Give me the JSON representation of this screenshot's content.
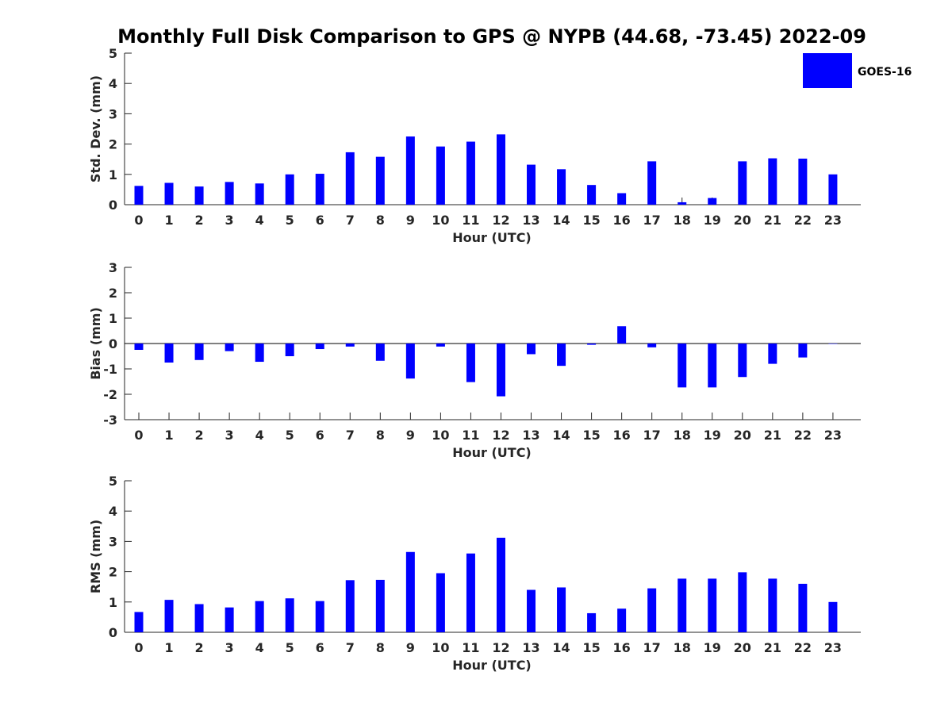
{
  "title": "Monthly Full Disk Comparison to GPS @ NYPB (44.68, -73.45) 2022-09",
  "legend": {
    "label": "GOES-16",
    "color": "#0000ff"
  },
  "bar_color": "#0000ff",
  "chart_data": [
    {
      "type": "bar",
      "xlabel": "Hour (UTC)",
      "ylabel": "Std. Dev. (mm)",
      "ylim": [
        0,
        5
      ],
      "yticks": [
        0,
        1,
        2,
        3,
        4,
        5
      ],
      "categories": [
        "0",
        "1",
        "2",
        "3",
        "4",
        "5",
        "6",
        "7",
        "8",
        "9",
        "10",
        "11",
        "12",
        "13",
        "14",
        "15",
        "16",
        "17",
        "18",
        "19",
        "20",
        "21",
        "22",
        "23"
      ],
      "series": [
        {
          "name": "GOES-16",
          "values": [
            0.62,
            0.72,
            0.6,
            0.75,
            0.7,
            1.0,
            1.02,
            1.73,
            1.58,
            2.25,
            1.92,
            2.08,
            2.32,
            1.32,
            1.17,
            0.65,
            0.38,
            1.43,
            0.08,
            0.22,
            1.43,
            1.53,
            1.52,
            1.0
          ]
        }
      ],
      "legend": "top-right",
      "grid": false
    },
    {
      "type": "bar",
      "xlabel": "Hour (UTC)",
      "ylabel": "Bias (mm)",
      "ylim": [
        -3,
        3
      ],
      "yticks": [
        -3,
        -2,
        -1,
        0,
        1,
        2,
        3
      ],
      "categories": [
        "0",
        "1",
        "2",
        "3",
        "4",
        "5",
        "6",
        "7",
        "8",
        "9",
        "10",
        "11",
        "12",
        "13",
        "14",
        "15",
        "16",
        "17",
        "18",
        "19",
        "20",
        "21",
        "22",
        "23"
      ],
      "series": [
        {
          "name": "GOES-16",
          "values": [
            -0.25,
            -0.75,
            -0.65,
            -0.3,
            -0.72,
            -0.5,
            -0.22,
            -0.12,
            -0.68,
            -1.38,
            -0.12,
            -1.52,
            -2.08,
            -0.42,
            -0.88,
            -0.05,
            0.68,
            -0.15,
            -1.73,
            -1.73,
            -1.32,
            -0.8,
            -0.55,
            0.0
          ]
        }
      ],
      "grid": false
    },
    {
      "type": "bar",
      "xlabel": "Hour (UTC)",
      "ylabel": "RMS (mm)",
      "ylim": [
        0,
        5
      ],
      "yticks": [
        0,
        1,
        2,
        3,
        4,
        5
      ],
      "categories": [
        "0",
        "1",
        "2",
        "3",
        "4",
        "5",
        "6",
        "7",
        "8",
        "9",
        "10",
        "11",
        "12",
        "13",
        "14",
        "15",
        "16",
        "17",
        "18",
        "19",
        "20",
        "21",
        "22",
        "23"
      ],
      "series": [
        {
          "name": "GOES-16",
          "values": [
            0.67,
            1.07,
            0.93,
            0.82,
            1.03,
            1.12,
            1.03,
            1.72,
            1.73,
            2.65,
            1.95,
            2.6,
            3.12,
            1.4,
            1.48,
            0.63,
            0.78,
            1.45,
            1.77,
            1.77,
            1.98,
            1.77,
            1.6,
            1.0
          ]
        }
      ],
      "grid": false
    }
  ]
}
